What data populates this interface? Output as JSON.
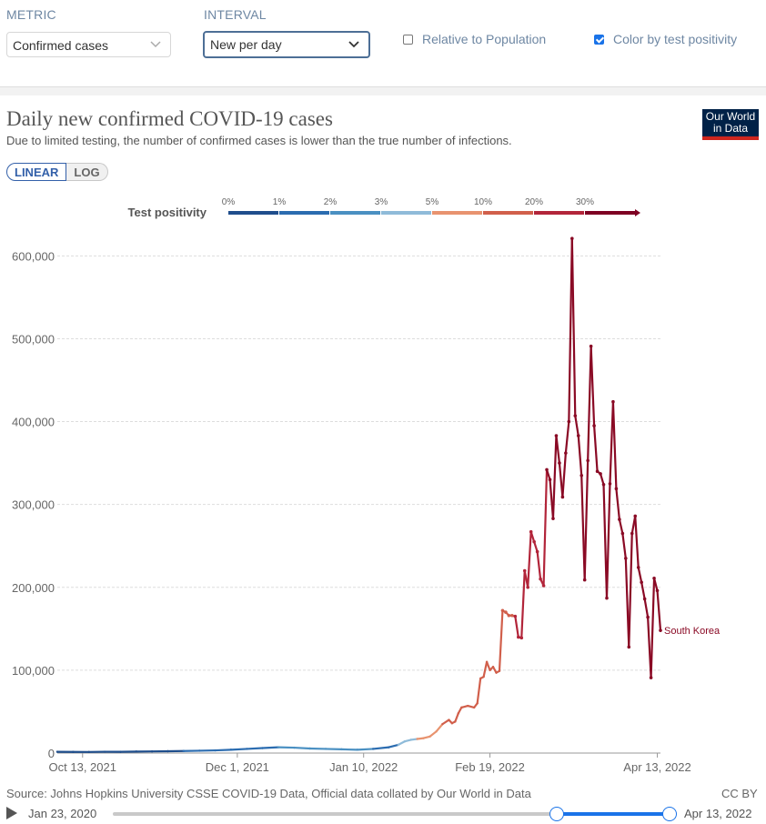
{
  "controls": {
    "metric_label": "METRIC",
    "metric_value": "Confirmed cases",
    "interval_label": "INTERVAL",
    "interval_value": "New per day",
    "relative_label": "Relative to Population",
    "relative_checked": false,
    "color_by_label": "Color by test positivity",
    "color_by_checked": true
  },
  "header": {
    "title": "Daily new confirmed COVID-19 cases",
    "subtitle": "Due to limited testing, the number of confirmed cases is lower than the true number of infections.",
    "logo_line1": "Our World",
    "logo_line2": "in Data"
  },
  "scale_toggle": {
    "linear": "LINEAR",
    "log": "LOG"
  },
  "legend": {
    "title": "Test positivity",
    "ticks": [
      "0%",
      "1%",
      "2%",
      "3%",
      "5%",
      "10%",
      "20%",
      "30%"
    ],
    "colors": [
      "#1f4e8c",
      "#2b6cb0",
      "#4a90c2",
      "#8fbbd9",
      "#e8936f",
      "#d15f4b",
      "#b2253a",
      "#7e0023"
    ]
  },
  "chart_data": {
    "type": "line",
    "title": "Daily new confirmed COVID-19 cases",
    "series_name": "South Korea",
    "ylim": [
      0,
      620000
    ],
    "yticks": [
      0,
      100000,
      200000,
      300000,
      400000,
      500000,
      600000
    ],
    "ytick_labels": [
      "0",
      "100,000",
      "200,000",
      "300,000",
      "400,000",
      "500,000",
      "600,000"
    ],
    "xlim_days": [
      0,
      188
    ],
    "xticks": [
      {
        "day": 8,
        "label": "Oct 13, 2021"
      },
      {
        "day": 57,
        "label": "Dec 1, 2021"
      },
      {
        "day": 97,
        "label": "Jan 10, 2022"
      },
      {
        "day": 137,
        "label": "Feb 19, 2022"
      },
      {
        "day": 190,
        "label": "Apr 13, 2022"
      }
    ],
    "points": [
      [
        0,
        1500
      ],
      [
        5,
        1400
      ],
      [
        10,
        1300
      ],
      [
        15,
        1600
      ],
      [
        20,
        1500
      ],
      [
        25,
        1800
      ],
      [
        30,
        2000
      ],
      [
        35,
        2200
      ],
      [
        40,
        2500
      ],
      [
        45,
        2800
      ],
      [
        50,
        3200
      ],
      [
        55,
        4000
      ],
      [
        60,
        5000
      ],
      [
        65,
        6000
      ],
      [
        70,
        7000
      ],
      [
        75,
        6500
      ],
      [
        80,
        5500
      ],
      [
        85,
        5000
      ],
      [
        90,
        4500
      ],
      [
        95,
        4000
      ],
      [
        100,
        5000
      ],
      [
        105,
        7000
      ],
      [
        108,
        10000
      ],
      [
        110,
        14000
      ],
      [
        112,
        16000
      ],
      [
        114,
        17000
      ],
      [
        116,
        18000
      ],
      [
        118,
        20000
      ],
      [
        120,
        26000
      ],
      [
        122,
        35000
      ],
      [
        124,
        40000
      ],
      [
        125,
        36000
      ],
      [
        126,
        38000
      ],
      [
        127,
        48000
      ],
      [
        128,
        55000
      ],
      [
        130,
        57000
      ],
      [
        132,
        55000
      ],
      [
        133,
        60000
      ],
      [
        134,
        90000
      ],
      [
        135,
        92000
      ],
      [
        136,
        110000
      ],
      [
        137,
        100000
      ],
      [
        138,
        104000
      ],
      [
        139,
        97000
      ],
      [
        140,
        99000
      ],
      [
        141,
        172000
      ],
      [
        142,
        170000
      ],
      [
        143,
        166000
      ],
      [
        144,
        166000
      ],
      [
        145,
        165000
      ],
      [
        146,
        140000
      ],
      [
        147,
        139000
      ],
      [
        148,
        220000
      ],
      [
        149,
        200000
      ],
      [
        150,
        267000
      ],
      [
        151,
        255000
      ],
      [
        152,
        243000
      ],
      [
        153,
        210000
      ],
      [
        154,
        202000
      ],
      [
        155,
        342000
      ],
      [
        156,
        330000
      ],
      [
        157,
        283000
      ],
      [
        158,
        383000
      ],
      [
        159,
        350000
      ],
      [
        160,
        309000
      ],
      [
        161,
        362000
      ],
      [
        162,
        400000
      ],
      [
        163,
        621000
      ],
      [
        164,
        407000
      ],
      [
        165,
        383000
      ],
      [
        166,
        335000
      ],
      [
        167,
        209000
      ],
      [
        168,
        353000
      ],
      [
        169,
        491000
      ],
      [
        170,
        395000
      ],
      [
        171,
        340000
      ],
      [
        172,
        337000
      ],
      [
        173,
        324000
      ],
      [
        174,
        187000
      ],
      [
        175,
        325000
      ],
      [
        176,
        424000
      ],
      [
        177,
        319000
      ],
      [
        178,
        282000
      ],
      [
        179,
        265000
      ],
      [
        180,
        235000
      ],
      [
        181,
        128000
      ],
      [
        182,
        265000
      ],
      [
        183,
        286000
      ],
      [
        184,
        224000
      ],
      [
        185,
        206000
      ],
      [
        186,
        186000
      ],
      [
        187,
        164000
      ],
      [
        188,
        91000
      ],
      [
        189,
        211000
      ],
      [
        190,
        196000
      ],
      [
        191,
        148000
      ]
    ],
    "positivity_segments": [
      {
        "until_day": 40,
        "color": "#1f4e8c"
      },
      {
        "until_day": 70,
        "color": "#2b6cb0"
      },
      {
        "until_day": 100,
        "color": "#4a90c2"
      },
      {
        "until_day": 108,
        "color": "#2b6cb0"
      },
      {
        "until_day": 114,
        "color": "#8fbbd9"
      },
      {
        "until_day": 122,
        "color": "#e8936f"
      },
      {
        "until_day": 145,
        "color": "#d15f4b"
      },
      {
        "until_day": 155,
        "color": "#b2253a"
      },
      {
        "until_day": 999,
        "color": "#8a0a25"
      }
    ],
    "end_label": "South Korea"
  },
  "footer": {
    "source": "Source: Johns Hopkins University CSSE COVID-19 Data, Official data collated by Our World in Data",
    "license": "CC BY"
  },
  "timeline": {
    "start_label": "Jan 23, 2020",
    "end_label": "Apr 13, 2022",
    "range_start_fraction": 0.797,
    "range_end_fraction": 1.0
  }
}
